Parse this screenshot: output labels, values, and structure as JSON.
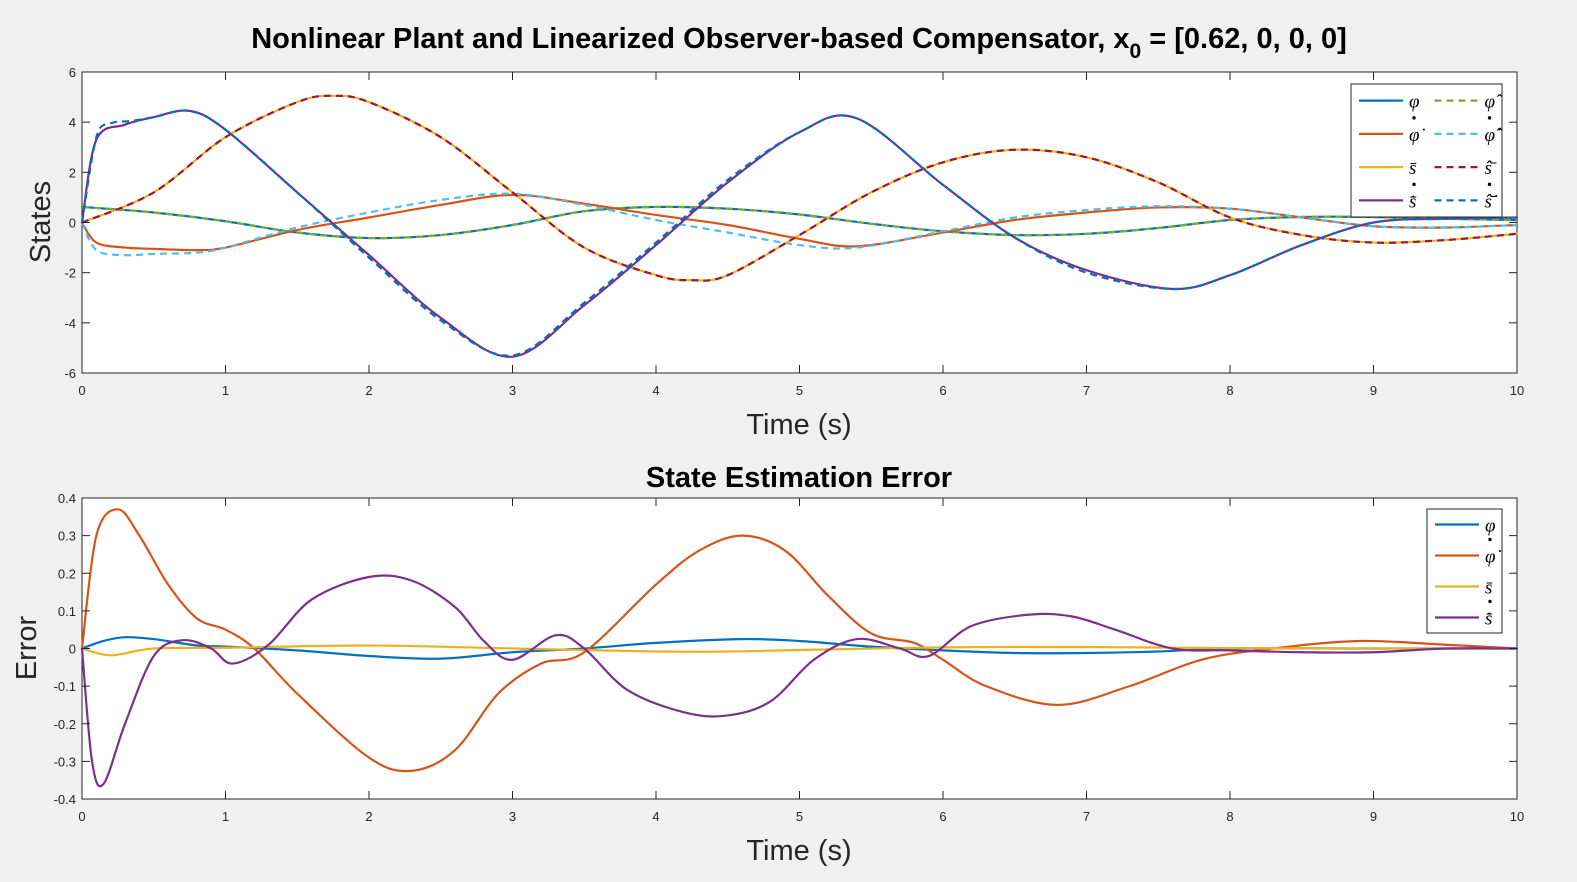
{
  "chart_data": [
    {
      "type": "line",
      "title_main": "Nonlinear Plant and Linearized Observer-based Compensator, x",
      "title_sub": "0",
      "title_tail": " = [0.62, 0, 0, 0]",
      "xlabel": "Time (s)",
      "ylabel": "States",
      "xlim": [
        0,
        10
      ],
      "ylim": [
        -6,
        6
      ],
      "xticks": [
        "0",
        "1",
        "2",
        "3",
        "4",
        "5",
        "6",
        "7",
        "8",
        "9",
        "10"
      ],
      "yticks": [
        "-6",
        "-4",
        "-2",
        "0",
        "2",
        "4",
        "6"
      ],
      "grid": false,
      "legend_position": "top-right",
      "legend": [
        {
          "label": "φ",
          "dot": false,
          "color": "#0072BD",
          "dashed": false
        },
        {
          "label": "φ̂",
          "dot": false,
          "color": "#77AC30",
          "dashed": true
        },
        {
          "label": "φ̇",
          "dot": true,
          "color": "#D95319",
          "dashed": false
        },
        {
          "label": "φ̂̇",
          "dot": true,
          "color": "#4DBEEE",
          "dashed": true
        },
        {
          "label": "s̄",
          "dot": false,
          "color": "#EDB120",
          "dashed": false
        },
        {
          "label": "ŝ̄",
          "dot": false,
          "color": "#A2142F",
          "dashed": true
        },
        {
          "label": "s̄̇",
          "dot": true,
          "color": "#7E2F8E",
          "dashed": false
        },
        {
          "label": "ŝ̄̇",
          "dot": true,
          "color": "#0072BD",
          "dashed": true
        }
      ],
      "series": [
        {
          "color": "#0072BD",
          "dashed": false,
          "x": [
            0,
            0.5,
            1,
            1.5,
            2,
            2.5,
            3,
            3.5,
            4,
            4.5,
            5,
            5.5,
            6,
            6.5,
            7,
            7.5,
            8,
            8.5,
            9,
            9.5,
            10
          ],
          "y": [
            0.62,
            0.4,
            0.05,
            -0.4,
            -0.62,
            -0.5,
            -0.1,
            0.45,
            0.62,
            0.55,
            0.32,
            -0.05,
            -0.35,
            -0.5,
            -0.45,
            -0.22,
            0.1,
            0.22,
            0.22,
            0.15,
            0.1
          ]
        },
        {
          "color": "#77AC30",
          "dashed": true,
          "x": [
            0,
            0.5,
            1,
            1.5,
            2,
            2.5,
            3,
            3.5,
            4,
            4.5,
            5,
            5.5,
            6,
            6.5,
            7,
            7.5,
            8,
            8.5,
            9,
            9.5,
            10
          ],
          "y": [
            0.62,
            0.4,
            0.05,
            -0.4,
            -0.62,
            -0.5,
            -0.1,
            0.45,
            0.62,
            0.55,
            0.32,
            -0.05,
            -0.35,
            -0.5,
            -0.45,
            -0.22,
            0.1,
            0.22,
            0.22,
            0.15,
            0.1
          ]
        },
        {
          "color": "#D95319",
          "dashed": false,
          "x": [
            0,
            0.1,
            0.3,
            0.5,
            0.8,
            1,
            1.5,
            2,
            2.5,
            3,
            3.5,
            4,
            4.5,
            5,
            5.4,
            6,
            6.5,
            7,
            7.5,
            8,
            8.5,
            9,
            9.5,
            10
          ],
          "y": [
            0,
            -0.8,
            -1.0,
            -1.05,
            -1.1,
            -1.0,
            -0.3,
            0.2,
            0.7,
            1.1,
            0.75,
            0.3,
            -0.1,
            -0.65,
            -0.95,
            -0.4,
            0.1,
            0.4,
            0.6,
            0.55,
            0.2,
            -0.15,
            -0.2,
            -0.1
          ]
        },
        {
          "color": "#4DBEEE",
          "dashed": true,
          "x": [
            0,
            0.1,
            0.3,
            0.5,
            0.8,
            1,
            1.5,
            2,
            2.5,
            3,
            3.5,
            4,
            4.5,
            5,
            5.4,
            6,
            6.5,
            7,
            7.5,
            8,
            8.5,
            9,
            9.5,
            10
          ],
          "y": [
            0,
            -1.1,
            -1.3,
            -1.25,
            -1.2,
            -1.0,
            -0.2,
            0.4,
            0.9,
            1.15,
            0.7,
            0.1,
            -0.4,
            -0.9,
            -1.0,
            -0.35,
            0.2,
            0.5,
            0.65,
            0.55,
            0.2,
            -0.15,
            -0.2,
            -0.1
          ]
        },
        {
          "color": "#EDB120",
          "dashed": false,
          "x": [
            0,
            0.5,
            1,
            1.5,
            1.75,
            2,
            2.5,
            3,
            3.5,
            4,
            4.25,
            4.5,
            5,
            5.5,
            6,
            6.5,
            7,
            7.5,
            8,
            8.5,
            9,
            9.5,
            10
          ],
          "y": [
            0,
            1.2,
            3.4,
            4.8,
            5.05,
            4.8,
            3.4,
            1.2,
            -1.0,
            -2.1,
            -2.3,
            -2.1,
            -0.5,
            1.2,
            2.4,
            2.9,
            2.6,
            1.6,
            0.2,
            -0.5,
            -0.8,
            -0.7,
            -0.45
          ]
        },
        {
          "color": "#A2142F",
          "dashed": true,
          "x": [
            0,
            0.5,
            1,
            1.5,
            1.75,
            2,
            2.5,
            3,
            3.5,
            4,
            4.25,
            4.5,
            5,
            5.5,
            6,
            6.5,
            7,
            7.5,
            8,
            8.5,
            9,
            9.5,
            10
          ],
          "y": [
            0,
            1.2,
            3.4,
            4.8,
            5.05,
            4.8,
            3.4,
            1.2,
            -1.0,
            -2.1,
            -2.3,
            -2.1,
            -0.5,
            1.2,
            2.4,
            2.9,
            2.6,
            1.6,
            0.2,
            -0.5,
            -0.8,
            -0.7,
            -0.45
          ]
        },
        {
          "color": "#7E2F8E",
          "dashed": false,
          "x": [
            0,
            0.1,
            0.3,
            0.5,
            0.75,
            1,
            1.5,
            2,
            2.5,
            3,
            3.5,
            4,
            4.5,
            5,
            5.4,
            6,
            6.5,
            7,
            7.6,
            8,
            8.5,
            9,
            9.5,
            10
          ],
          "y": [
            0,
            3.3,
            3.9,
            4.2,
            4.45,
            3.7,
            1.2,
            -1.3,
            -3.8,
            -5.35,
            -3.3,
            -0.9,
            1.6,
            3.6,
            4.15,
            1.5,
            -0.6,
            -1.9,
            -2.65,
            -2.1,
            -0.9,
            0,
            0.15,
            0.2
          ]
        },
        {
          "color": "#0072BD",
          "dashed": true,
          "x": [
            0,
            0.1,
            0.2,
            0.35,
            0.5,
            0.75,
            1,
            1.5,
            2,
            2.5,
            3,
            3.5,
            4,
            4.5,
            5,
            5.4,
            6,
            6.5,
            7,
            7.6,
            8,
            8.5,
            9,
            9.5,
            10
          ],
          "y": [
            0,
            3.4,
            3.95,
            4.05,
            4.2,
            4.45,
            3.7,
            1.2,
            -1.4,
            -3.9,
            -5.3,
            -3.2,
            -0.8,
            1.7,
            3.6,
            4.15,
            1.5,
            -0.6,
            -2.0,
            -2.65,
            -2.1,
            -0.9,
            0,
            0.15,
            0.2
          ]
        }
      ]
    },
    {
      "type": "line",
      "title": "State Estimation Error",
      "xlabel": "Time (s)",
      "ylabel": "Error",
      "xlim": [
        0,
        10
      ],
      "ylim": [
        -0.4,
        0.4
      ],
      "xticks": [
        "0",
        "1",
        "2",
        "3",
        "4",
        "5",
        "6",
        "7",
        "8",
        "9",
        "10"
      ],
      "yticks": [
        "-0.4",
        "-0.3",
        "-0.2",
        "-0.1",
        "0",
        "0.1",
        "0.2",
        "0.3",
        "0.4"
      ],
      "grid": false,
      "legend_position": "top-right",
      "legend": [
        {
          "label": "φ",
          "dot": false,
          "color": "#0072BD"
        },
        {
          "label": "φ̇",
          "dot": true,
          "color": "#D95319"
        },
        {
          "label": "s̄",
          "dot": false,
          "color": "#EDB120"
        },
        {
          "label": "s̄̇",
          "dot": true,
          "color": "#7E2F8E"
        }
      ],
      "series": [
        {
          "color": "#0072BD",
          "x": [
            0,
            0.15,
            0.3,
            0.5,
            0.8,
            1,
            1.5,
            2,
            2.5,
            3,
            3.5,
            4,
            4.6,
            5,
            5.5,
            6,
            6.5,
            7,
            7.5,
            8,
            9,
            10
          ],
          "y": [
            0,
            0.02,
            0.03,
            0.025,
            0.008,
            0.005,
            -0.005,
            -0.02,
            -0.027,
            -0.01,
            0.0,
            0.015,
            0.025,
            0.02,
            0.005,
            -0.005,
            -0.012,
            -0.012,
            -0.008,
            0,
            0,
            0
          ]
        },
        {
          "color": "#D95319",
          "x": [
            0,
            0.1,
            0.25,
            0.4,
            0.6,
            0.8,
            1,
            1.2,
            1.5,
            2,
            2.3,
            2.6,
            2.9,
            3.2,
            3.5,
            4,
            4.3,
            4.6,
            4.9,
            5.2,
            5.5,
            5.8,
            6,
            6.3,
            6.8,
            7.3,
            7.8,
            8.3,
            8.9,
            9.5,
            10
          ],
          "y": [
            0,
            0.3,
            0.37,
            0.3,
            0.17,
            0.08,
            0.05,
            0.0,
            -0.12,
            -0.29,
            -0.325,
            -0.27,
            -0.12,
            -0.04,
            -0.01,
            0.17,
            0.26,
            0.3,
            0.26,
            0.14,
            0.04,
            0.015,
            -0.03,
            -0.1,
            -0.15,
            -0.1,
            -0.03,
            0.0,
            0.02,
            0.01,
            0.0
          ]
        },
        {
          "color": "#EDB120",
          "x": [
            0,
            0.2,
            0.5,
            1,
            2,
            3,
            4,
            4.5,
            5,
            6,
            7,
            8,
            9,
            10
          ],
          "y": [
            0,
            -0.018,
            0,
            0.002,
            0.008,
            0.0,
            -0.008,
            -0.008,
            -0.004,
            0.003,
            0.004,
            0.001,
            0,
            0
          ]
        },
        {
          "color": "#7E2F8E",
          "x": [
            0,
            0.07,
            0.15,
            0.3,
            0.5,
            0.7,
            0.9,
            1.05,
            1.3,
            1.6,
            2,
            2.3,
            2.6,
            2.8,
            3,
            3.3,
            3.5,
            3.8,
            4.2,
            4.5,
            4.8,
            5.1,
            5.4,
            5.7,
            5.9,
            6.2,
            6.6,
            6.9,
            7.2,
            7.6,
            8,
            8.5,
            9,
            9.5,
            10
          ],
          "y": [
            0,
            -0.3,
            -0.36,
            -0.2,
            -0.02,
            0.022,
            0.0,
            -0.04,
            0.01,
            0.13,
            0.19,
            0.18,
            0.11,
            0.02,
            -0.03,
            0.035,
            0.0,
            -0.11,
            -0.17,
            -0.178,
            -0.14,
            -0.03,
            0.025,
            0.0,
            -0.02,
            0.06,
            0.09,
            0.085,
            0.05,
            0.0,
            -0.005,
            -0.01,
            -0.01,
            0,
            0
          ]
        }
      ]
    }
  ]
}
